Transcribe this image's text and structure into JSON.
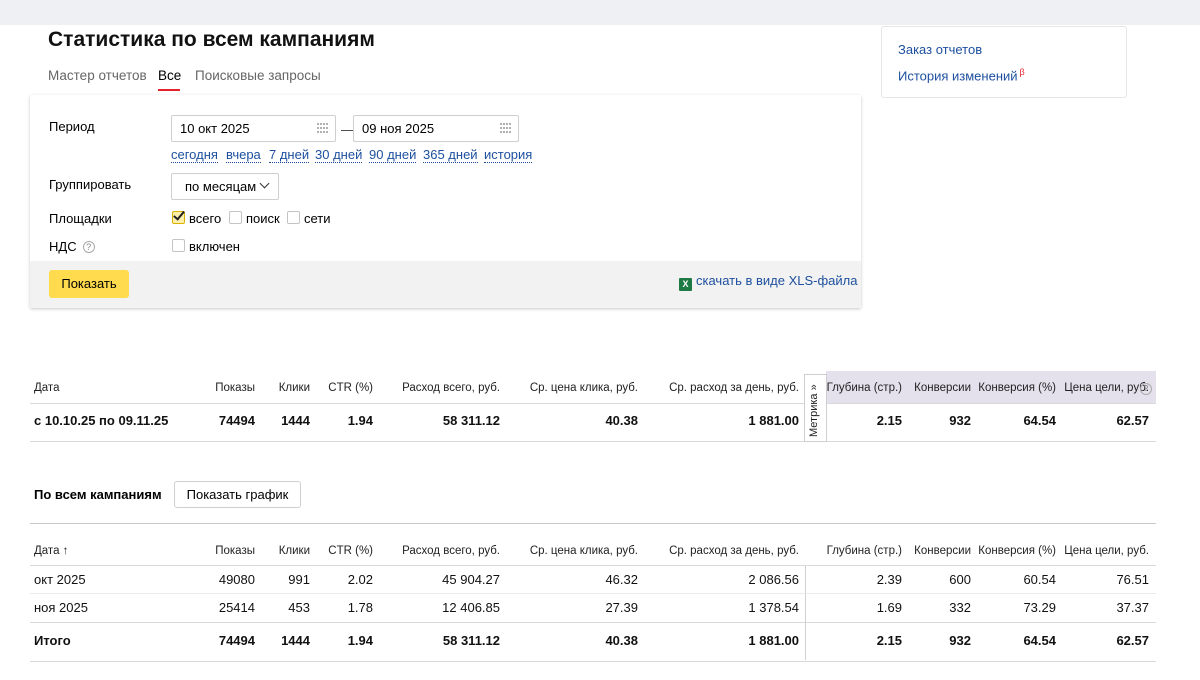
{
  "page_title": "Статистика по всем кампаниям",
  "tabs": [
    {
      "label": "Мастер отчетов",
      "active": false
    },
    {
      "label": "Все",
      "active": true
    },
    {
      "label": "Поисковые запросы",
      "active": false
    }
  ],
  "side": {
    "order_reports": "Заказ отчетов",
    "change_history": "История изменений",
    "beta": "β"
  },
  "filters": {
    "period_label": "Период",
    "date_from": "10 окт 2025",
    "date_to": "09 ноя 2025",
    "dash": "—",
    "quick_links": [
      "сегодня",
      "вчера",
      "7 дней",
      "30 дней",
      "90 дней",
      "365 дней",
      "история"
    ],
    "group_label": "Группировать",
    "group_value": "по месяцам",
    "sites_label": "Площадки",
    "sites": [
      {
        "label": "всего",
        "checked": true
      },
      {
        "label": "поиск",
        "checked": false
      },
      {
        "label": "сети",
        "checked": false
      }
    ],
    "vat_label": "НДС",
    "vat_help": "?",
    "vat_option": {
      "label": "включен",
      "checked": false
    },
    "show_button": "Показать",
    "xls_link": "скачать в виде XLS-файла",
    "xls_icon": "X"
  },
  "summary": {
    "headers": [
      "Дата",
      "Показы",
      "Клики",
      "CTR (%)",
      "Расход всего, руб.",
      "Ср. цена клика, руб.",
      "Ср. расход за день, руб.",
      "Глубина (стр.)",
      "Конверсии",
      "Конверсия (%)",
      "Цена цели, руб."
    ],
    "row": [
      "с 10.10.25 по 09.11.25",
      "74494",
      "1444",
      "1.94",
      "58 311.12",
      "40.38",
      "1 881.00",
      "2.15",
      "932",
      "64.54",
      "62.57"
    ],
    "metrika_tab": "Метрика »",
    "metrika_help": "?"
  },
  "campaigns": {
    "title": "По всем кампаниям",
    "graph_button": "Показать график",
    "headers": [
      "Дата ↑",
      "Показы",
      "Клики",
      "CTR (%)",
      "Расход всего, руб.",
      "Ср. цена клика, руб.",
      "Ср. расход за день, руб.",
      "Глубина (стр.)",
      "Конверсии",
      "Конверсия (%)",
      "Цена цели, руб."
    ],
    "rows": [
      [
        "окт 2025",
        "49080",
        "991",
        "2.02",
        "45 904.27",
        "46.32",
        "2 086.56",
        "2.39",
        "600",
        "60.54",
        "76.51"
      ],
      [
        "ноя 2025",
        "25414",
        "453",
        "1.78",
        "12 406.85",
        "27.39",
        "1 378.54",
        "1.69",
        "332",
        "73.29",
        "37.37"
      ]
    ],
    "total": [
      "Итого",
      "74494",
      "1444",
      "1.94",
      "58 311.12",
      "40.38",
      "1 881.00",
      "2.15",
      "932",
      "64.54",
      "62.57"
    ]
  },
  "colors": {
    "link": "#1d4f9e",
    "accent_red": "#e3222b",
    "button_yellow": "#ffdb4d",
    "metrika_bg": "#e5e1ec"
  }
}
